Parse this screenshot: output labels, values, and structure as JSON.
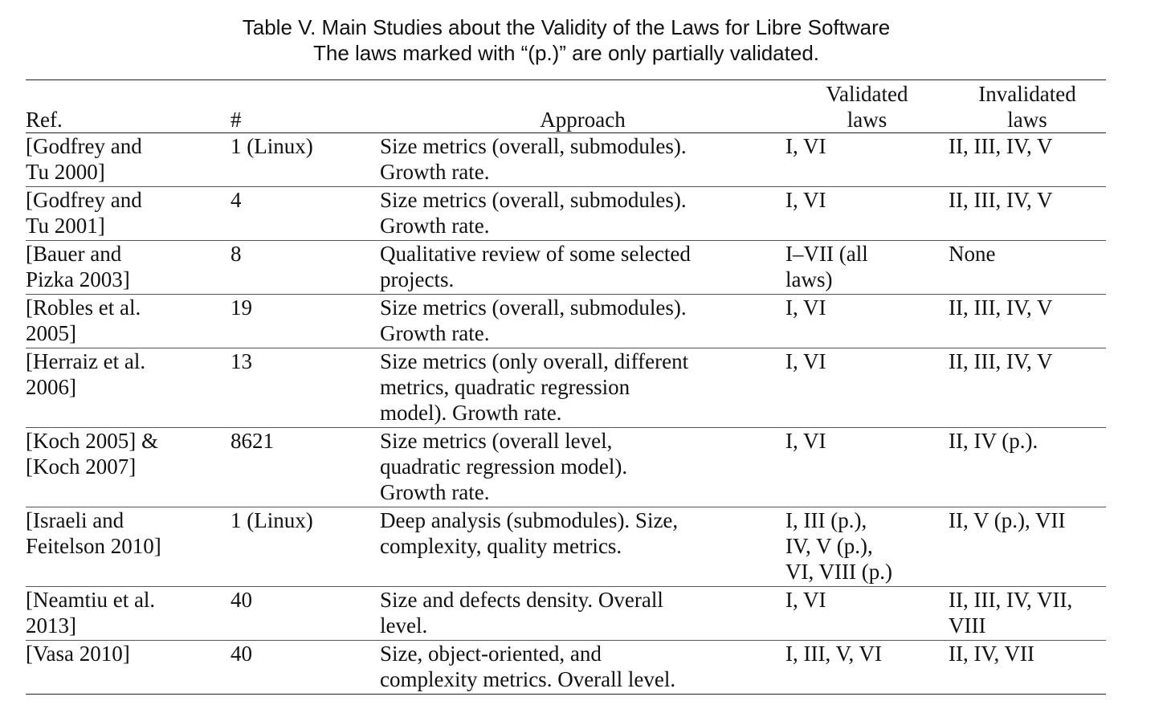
{
  "caption": {
    "line1": "Table V. Main Studies about the Validity of the Laws for Libre Software",
    "line2": "The laws marked with “(p.)” are only partially validated."
  },
  "headers": {
    "ref": "Ref.",
    "num": "#",
    "approach": "Approach",
    "validated": [
      "Validated",
      "laws"
    ],
    "invalidated": [
      "Invalidated",
      "laws"
    ]
  },
  "rows": [
    {
      "ref": [
        "[Godfrey and",
        "Tu 2000]"
      ],
      "num": "1 (Linux)",
      "approach": [
        "Size metrics (overall, submodules).",
        "Growth rate."
      ],
      "validated": [
        "I, VI"
      ],
      "invalidated": [
        "II, III, IV, V"
      ]
    },
    {
      "ref": [
        "[Godfrey and",
        "Tu 2001]"
      ],
      "num": "4",
      "approach": [
        "Size metrics (overall, submodules).",
        "Growth rate."
      ],
      "validated": [
        "I, VI"
      ],
      "invalidated": [
        "II, III, IV, V"
      ]
    },
    {
      "ref": [
        "[Bauer and",
        "Pizka 2003]"
      ],
      "num": "8",
      "approach": [
        "Qualitative review of some selected",
        "projects."
      ],
      "validated": [
        "I–VII (all",
        "laws)"
      ],
      "invalidated": [
        "None"
      ]
    },
    {
      "ref": [
        "[Robles et al.",
        "2005]"
      ],
      "num": "19",
      "approach": [
        "Size metrics (overall, submodules).",
        "Growth rate."
      ],
      "validated": [
        "I, VI"
      ],
      "invalidated": [
        "II, III, IV, V"
      ]
    },
    {
      "ref": [
        "[Herraiz et al.",
        "2006]"
      ],
      "num": "13",
      "approach": [
        "Size metrics (only overall, different",
        "metrics, quadratic regression",
        "model). Growth rate."
      ],
      "validated": [
        "I, VI"
      ],
      "invalidated": [
        "II, III, IV, V"
      ]
    },
    {
      "ref": [
        "[Koch 2005] &",
        "[Koch 2007]"
      ],
      "num": "8621",
      "approach": [
        "Size metrics (overall level,",
        "quadratic regression model).",
        "Growth rate."
      ],
      "validated": [
        "I, VI"
      ],
      "invalidated": [
        "II, IV (p.)."
      ]
    },
    {
      "ref": [
        "[Israeli and",
        "Feitelson 2010]"
      ],
      "num": "1 (Linux)",
      "approach": [
        "Deep analysis (submodules). Size,",
        "complexity, quality metrics."
      ],
      "validated": [
        "I, III (p.),",
        "IV, V (p.),",
        "VI, VIII (p.)"
      ],
      "invalidated": [
        "II, V (p.), VII"
      ]
    },
    {
      "ref": [
        "[Neamtiu et al.",
        "2013]"
      ],
      "num": "40",
      "approach": [
        "Size and defects density. Overall",
        "level."
      ],
      "validated": [
        "I, VI"
      ],
      "invalidated": [
        "II, III, IV, VII,",
        "VIII"
      ]
    },
    {
      "ref": [
        "[Vasa 2010]"
      ],
      "num": "40",
      "approach": [
        "Size, object-oriented, and",
        "complexity metrics. Overall level."
      ],
      "validated": [
        "I, III, V, VI"
      ],
      "invalidated": [
        "II, IV, VII"
      ]
    }
  ]
}
